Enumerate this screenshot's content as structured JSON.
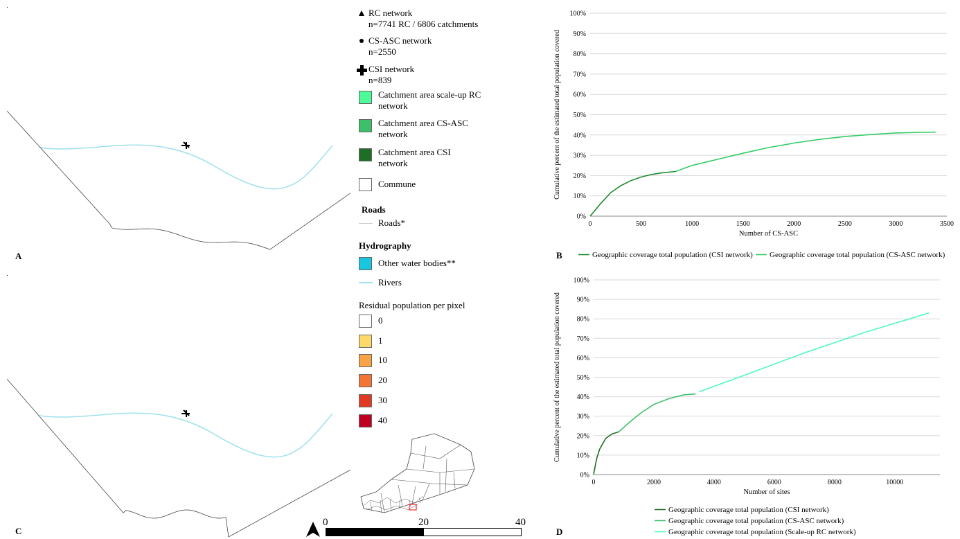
{
  "panels": {
    "A": "A",
    "B": "B",
    "C": "C",
    "D": "D"
  },
  "legend": {
    "points": [
      {
        "icon": "triangle",
        "l1": "RC network",
        "l2": "n=7741 RC / 6806 catchments"
      },
      {
        "icon": "dot",
        "l1": "CS-ASC network",
        "l2": "n=2550"
      },
      {
        "icon": "cross",
        "l1": "CSI network",
        "l2": "n=839"
      }
    ],
    "areas": [
      {
        "color": "#4dfa9a",
        "l1": "Catchment area scale-up RC",
        "l2": "network"
      },
      {
        "color": "#3ebf6a",
        "l1": "Catchment area CS-ASC",
        "l2": "network"
      },
      {
        "color": "#1f6e26",
        "l1": "Catchment area CSI",
        "l2": "network"
      }
    ],
    "commune": {
      "color": "#ffffff",
      "label": "Commune"
    },
    "roads_head": "Roads",
    "roads": {
      "color": "#cccccc",
      "label": "Roads*"
    },
    "hydro_head": "Hydrography",
    "water": {
      "color": "#18c6e0",
      "label": "Other water bodies**"
    },
    "rivers": {
      "color": "#9ee0ec",
      "label": "Rivers"
    },
    "residual_head": "Residual population per pixel",
    "residual": [
      {
        "color": "#ffffff",
        "label": "0"
      },
      {
        "color": "#fdd86b",
        "label": "1"
      },
      {
        "color": "#f8a345",
        "label": "10"
      },
      {
        "color": "#f27536",
        "label": "20"
      },
      {
        "color": "#e13a23",
        "label": "30"
      },
      {
        "color": "#c0001f",
        "label": "40"
      }
    ]
  },
  "scalebar": {
    "t0": "0",
    "t1": "20",
    "t2": "40"
  },
  "charts": {
    "B": {
      "ylabel": "Cumulative percent of the estimated total population covered",
      "xlabel": "Number of CS-ASC",
      "xticks": [
        "0",
        "500",
        "1000",
        "1500",
        "2000",
        "2500",
        "3000",
        "3500"
      ],
      "yticks": [
        "0%",
        "10%",
        "20%",
        "30%",
        "40%",
        "50%",
        "60%",
        "70%",
        "80%",
        "90%",
        "100%"
      ],
      "legend": [
        {
          "label": "Geographic coverage total population (CSI network)",
          "color": "#1f8a2e"
        },
        {
          "label": "Geographic coverage total population (CS-ASC network)",
          "color": "#33cc66"
        }
      ]
    },
    "D": {
      "ylabel": "Cumulative percent of the estimated total population covered",
      "xlabel": "Number of sites",
      "xticks": [
        "0",
        "2000",
        "4000",
        "6000",
        "8000",
        "10000"
      ],
      "yticks": [
        "0%",
        "10%",
        "20%",
        "30%",
        "40%",
        "50%",
        "60%",
        "70%",
        "80%",
        "90%",
        "100%"
      ],
      "legend": [
        {
          "label": "Geographic coverage total population (CSI network)",
          "color": "#1f6e26"
        },
        {
          "label": "Geographic coverage total population (CS-ASC network)",
          "color": "#3ebf6a"
        },
        {
          "label": "Geographic coverage total population (Scale-up RC network)",
          "color": "#4dfac0"
        }
      ]
    }
  },
  "chart_data": [
    {
      "type": "line",
      "xlabel": "Number of CS-ASC",
      "ylabel": "Cumulative percent of the estimated total population covered",
      "xlim": [
        0,
        3500
      ],
      "ylim": [
        0,
        100
      ],
      "grid": true,
      "legend": "bottom",
      "series": [
        {
          "name": "Geographic coverage total population (CSI network)",
          "color": "#1f8a2e",
          "x": [
            0,
            50,
            100,
            200,
            300,
            400,
            500,
            600,
            700,
            839
          ],
          "y": [
            0,
            3,
            6,
            11.5,
            15,
            17.5,
            19.3,
            20.5,
            21.3,
            22
          ]
        },
        {
          "name": "Geographic coverage total population (CS-ASC network)",
          "color": "#33cc66",
          "x": [
            839,
            1000,
            1250,
            1500,
            1750,
            2000,
            2250,
            2500,
            2750,
            3000,
            3250,
            3389
          ],
          "y": [
            22,
            25,
            28,
            31,
            33.8,
            36,
            37.8,
            39.2,
            40.2,
            41,
            41.3,
            41.4
          ]
        }
      ]
    },
    {
      "type": "line",
      "xlabel": "Number of sites",
      "ylabel": "Cumulative percent of the estimated total population covered",
      "xlim": [
        0,
        11500
      ],
      "ylim": [
        0,
        100
      ],
      "grid": true,
      "legend": "bottom",
      "series": [
        {
          "name": "Geographic coverage total population (CSI network)",
          "color": "#1f6e26",
          "x": [
            0,
            100,
            200,
            400,
            600,
            839
          ],
          "y": [
            0,
            8,
            13,
            18.5,
            20.8,
            22
          ]
        },
        {
          "name": "Geographic coverage total population (CS-ASC network)",
          "color": "#3ebf6a",
          "x": [
            839,
            1200,
            1600,
            2000,
            2500,
            3000,
            3389
          ],
          "y": [
            22,
            27,
            32,
            36,
            39,
            41,
            41.4
          ]
        },
        {
          "name": "Geographic coverage total population (Scale-up RC network)",
          "color": "#4dfac0",
          "x": [
            3500,
            5000,
            7000,
            9000,
            11130
          ],
          "y": [
            42.5,
            51,
            62.5,
            73,
            83
          ]
        }
      ]
    }
  ]
}
